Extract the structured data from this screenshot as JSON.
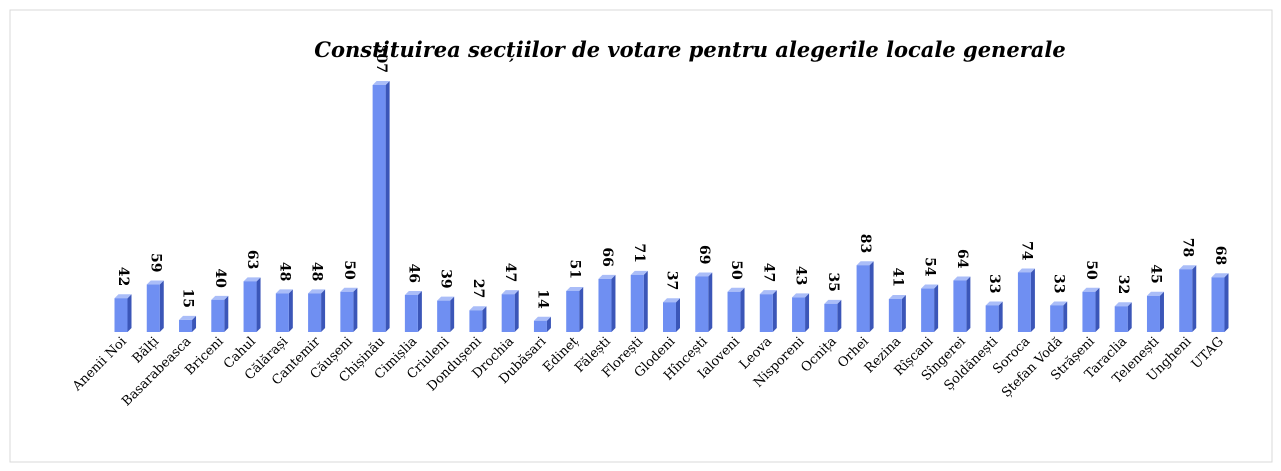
{
  "chart_data": {
    "type": "bar3d",
    "title": "Constituirea secțiilor de votare pentru alegerile locale generale",
    "categories": [
      "Anenii Noi",
      "Bălți",
      "Basarabeasca",
      "Briceni",
      "Cahul",
      "Călărași",
      "Cantemir",
      "Căușeni",
      "Chișinău",
      "Cimișlia",
      "Criuleni",
      "Dondușeni",
      "Drochia",
      "Dubăsari",
      "Edineț",
      "Fălești",
      "Florești",
      "Glodeni",
      "Hîncești",
      "Ialoveni",
      "Leova",
      "Nisporeni",
      "Ocnița",
      "Orhei",
      "Rezina",
      "Rîșcani",
      "Sîngerei",
      "Șoldănești",
      "Soroca",
      "Ștefan Vodă",
      "Strășeni",
      "Taraclia",
      "Telenești",
      "Ungheni",
      "UTAG"
    ],
    "values": [
      42,
      59,
      15,
      40,
      63,
      48,
      48,
      50,
      307,
      46,
      39,
      27,
      47,
      14,
      51,
      66,
      71,
      37,
      69,
      50,
      47,
      43,
      35,
      83,
      41,
      54,
      64,
      33,
      74,
      33,
      50,
      32,
      45,
      78,
      68
    ],
    "color": "#6f8ff2"
  }
}
